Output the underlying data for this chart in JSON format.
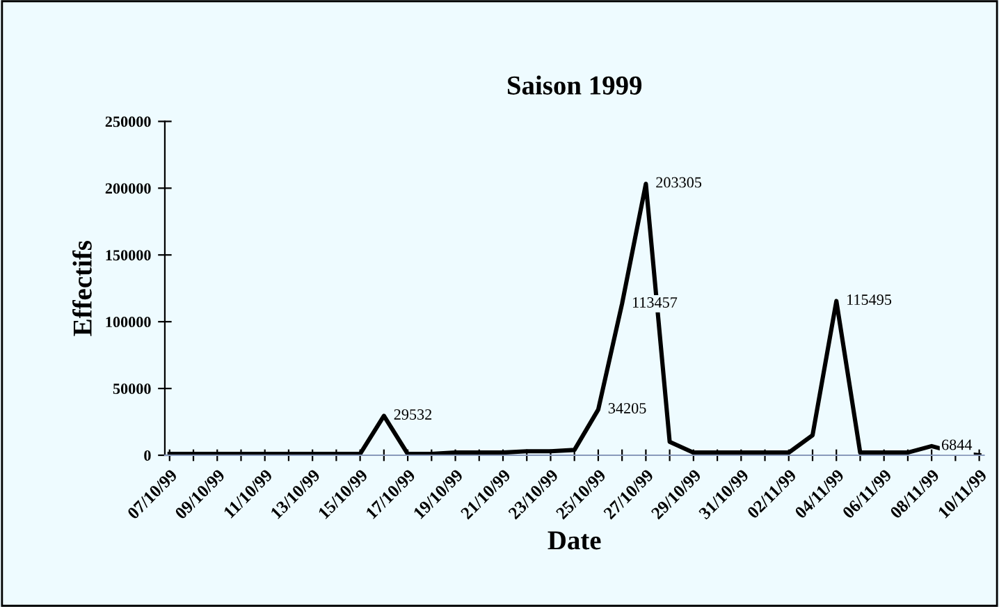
{
  "chart_data": {
    "type": "line",
    "title": "Saison 1999",
    "xlabel": "Date",
    "ylabel": "Effectifs",
    "categories": [
      "07/10/99",
      null,
      "09/10/99",
      null,
      "11/10/99",
      null,
      "13/10/99",
      null,
      "15/10/99",
      null,
      "17/10/99",
      null,
      "19/10/99",
      null,
      "21/10/99",
      null,
      "23/10/99",
      null,
      "25/10/99",
      null,
      "27/10/99",
      null,
      "29/10/99",
      null,
      "31/10/99",
      null,
      "02/11/99",
      null,
      "04/11/99",
      null,
      "06/11/99",
      null,
      "08/11/99",
      null,
      "10/11/99"
    ],
    "series": [
      {
        "color": "#000000",
        "values": [
          1000,
          1000,
          1000,
          1000,
          1000,
          1000,
          1000,
          1000,
          1000,
          29532,
          1000,
          1000,
          2000,
          2000,
          2000,
          3000,
          3000,
          4000,
          34205,
          113457,
          203305,
          10000,
          2000,
          2000,
          2000,
          2000,
          2000,
          15000,
          115495,
          2000,
          2000,
          2000,
          6844,
          2000,
          0
        ],
        "value_labels": [
          null,
          null,
          null,
          null,
          null,
          null,
          null,
          null,
          null,
          "29532",
          null,
          null,
          null,
          null,
          null,
          null,
          null,
          null,
          "34205",
          "113457",
          "203305",
          null,
          null,
          null,
          null,
          null,
          null,
          null,
          "115495",
          null,
          null,
          null,
          "6844",
          null,
          null
        ]
      }
    ],
    "ylim": [
      0,
      250000
    ],
    "yticks": [
      0,
      50000,
      100000,
      150000,
      200000,
      250000
    ],
    "grid": false,
    "legend": false,
    "marker": "none",
    "line_style": "solid"
  }
}
